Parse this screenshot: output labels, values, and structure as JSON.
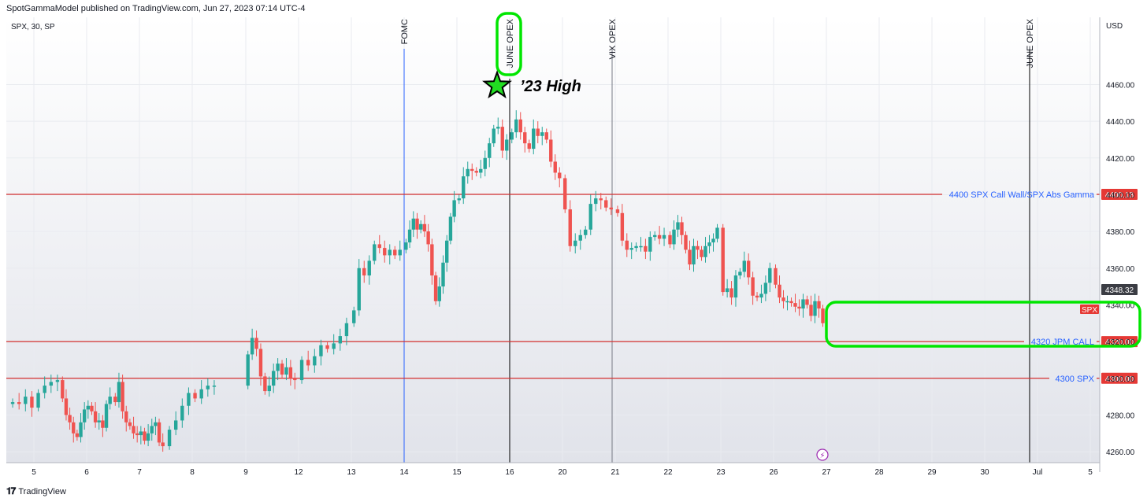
{
  "header": {
    "published": "SpotGammaModel published on TradingView.com, Jun 27, 2023 07:14 UTC-4"
  },
  "footer": {
    "brand": "TradingView",
    "logo_icon": "tv-logo-icon"
  },
  "chart": {
    "symbol": "SPX, 30, SP",
    "currency": "USD"
  },
  "colors": {
    "up": "#26a69a",
    "down": "#ef5350",
    "level_line": "#d32f2f",
    "highlight": "#00e600",
    "label_text": "#2962ff"
  },
  "chart_data": {
    "type": "candlestick",
    "title": "SPX, 30, SP",
    "ylim": [
      4250,
      4480
    ],
    "y_ticks": [
      "4260.00",
      "4280.00",
      "4300.00",
      "4320.00",
      "4340.00",
      "4360.00",
      "4380.00",
      "4400.00",
      "4420.00",
      "4440.00",
      "4460.00"
    ],
    "x_ticks": [
      "5",
      "6",
      "7",
      "8",
      "9",
      "12",
      "13",
      "14",
      "15",
      "16",
      "20",
      "21",
      "22",
      "23",
      "26",
      "27",
      "28",
      "29",
      "30",
      "Jul",
      "5"
    ],
    "vertical_events": [
      {
        "label": "FOMC",
        "at": "14",
        "color": "#2962ff"
      },
      {
        "label": "JUNE OPEX",
        "at": "16",
        "color": "#000000"
      },
      {
        "label": "VIX OPEX",
        "at": "21",
        "color": "#787b86"
      },
      {
        "label": "JUNE OPEX",
        "at": "30",
        "color": "#000000"
      }
    ],
    "horizontal_levels": [
      {
        "label": "4400 SPX Call Wall/SPX Abs Gamma",
        "price": "4400.18",
        "value": 4400.18
      },
      {
        "label": "4320 JPM CALL",
        "price": "4320.00",
        "value": 4320.0
      },
      {
        "label": "4300 SPX",
        "price": "4300.00",
        "value": 4300.0
      }
    ],
    "last_price": "4348.32",
    "series_tag": "SPX",
    "annotation": "’23 High",
    "closes_by_day": [
      {
        "day": "5",
        "closes": [
          4287,
          4286,
          4290,
          4284,
          4292,
          4296,
          4298,
          4299
        ]
      },
      {
        "day": "6",
        "closes": [
          4289,
          4280,
          4276,
          4270,
          4268,
          4276,
          4283,
          4285,
          4282,
          4276,
          4277,
          4273,
          4286,
          4290
        ]
      },
      {
        "day": "7",
        "closes": [
          4287,
          4298,
          4282,
          4276,
          4274,
          4270,
          4269,
          4271,
          4266,
          4270,
          4274,
          4276,
          4265,
          4263
        ]
      },
      {
        "day": "8",
        "closes": [
          4272,
          4277,
          4285,
          4292,
          4289,
          4294,
          4296,
          4296
        ]
      },
      {
        "day": "9",
        "closes": [
          4313,
          4322,
          4316,
          4301,
          4293,
          4296,
          4304,
          4308,
          4302,
          4306,
          4300,
          4299
        ]
      },
      {
        "day": "12",
        "closes": [
          4310,
          4307,
          4312,
          4318,
          4316,
          4319,
          4323,
          4330
        ]
      },
      {
        "day": "13",
        "closes": [
          4337,
          4360,
          4356,
          4364,
          4373,
          4371,
          4367,
          4370,
          4367,
          4370
        ]
      },
      {
        "day": "14",
        "closes": [
          4374,
          4381,
          4387,
          4381,
          4384,
          4380,
          4373,
          4356,
          4342,
          4350,
          4363,
          4375,
          4388,
          4397
        ]
      },
      {
        "day": "15",
        "closes": [
          4398,
          4410,
          4414,
          4413,
          4412,
          4414,
          4420,
          4428,
          4436,
          4437,
          4424,
          4430
        ]
      },
      {
        "day": "16",
        "closes": [
          4434,
          4441,
          4434,
          4428,
          4425,
          4436,
          4432,
          4434,
          4430,
          4418,
          4412,
          4409
        ]
      },
      {
        "day": "20",
        "closes": [
          4392,
          4372,
          4375,
          4378,
          4381,
          4395,
          4398,
          4397,
          4393,
          4392
        ]
      },
      {
        "day": "21",
        "closes": [
          4390,
          4375,
          4370,
          4371,
          4372,
          4372,
          4369,
          4377,
          4378,
          4376,
          4378
        ]
      },
      {
        "day": "22",
        "closes": [
          4373,
          4381,
          4385,
          4378,
          4370,
          4362,
          4372,
          4370,
          4366,
          4372,
          4374,
          4376,
          4382
        ]
      },
      {
        "day": "23",
        "closes": [
          4347,
          4349,
          4344,
          4356,
          4358,
          4364,
          4355,
          4345,
          4344,
          4346,
          4352,
          4360
        ]
      },
      {
        "day": "26",
        "closes": [
          4351,
          4344,
          4342,
          4342,
          4341,
          4339,
          4338,
          4343,
          4340,
          4334,
          4342,
          4338,
          4330
        ]
      }
    ]
  }
}
